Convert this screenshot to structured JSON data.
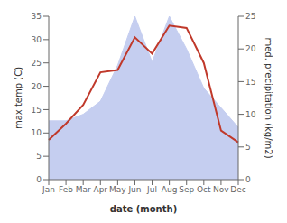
{
  "chart_data": {
    "type": "line",
    "categories": [
      "Jan",
      "Feb",
      "Mar",
      "Apr",
      "May",
      "Jun",
      "Jul",
      "Aug",
      "Sep",
      "Oct",
      "Nov",
      "Dec"
    ],
    "series": [
      {
        "type": "area",
        "axis": "y2",
        "color": "#c5cef0",
        "values": [
          9.0,
          9.0,
          10.0,
          12.0,
          17.5,
          25.0,
          18.0,
          25.0,
          20.0,
          14.0,
          11.0,
          8.0
        ]
      },
      {
        "type": "line",
        "color": "#c0392b",
        "values": [
          8.5,
          12.0,
          16.0,
          23.0,
          23.5,
          30.5,
          27.0,
          33.0,
          32.5,
          25.0,
          10.5,
          8.0
        ]
      }
    ],
    "xlabel": "date (month)",
    "ylabel": "max temp (C)",
    "y2label": "med. precipitation (kg/m2)",
    "ylim": [
      0,
      35
    ],
    "yticks": [
      0,
      5,
      10,
      15,
      20,
      25,
      30,
      35
    ],
    "y2lim": [
      0,
      25
    ],
    "y2ticks": [
      0,
      5,
      10,
      15,
      20,
      25
    ]
  }
}
